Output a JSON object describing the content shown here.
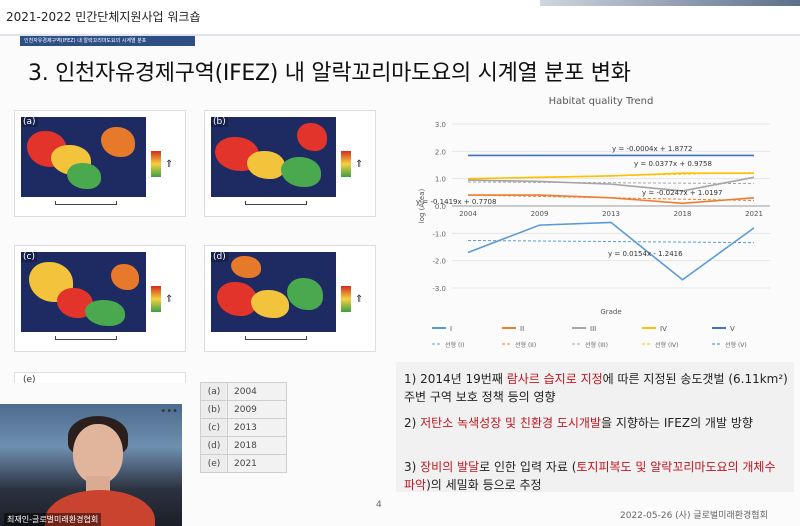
{
  "header": {
    "workshop": "2021-2022 민간단체지원사업 워크숍",
    "section_tag": "인천자유경제구역(IFEZ) 내 알락꼬리마도요의 시계열 분포",
    "title": "3. 인천자유경제구역(IFEZ) 내 알락꼬리마도요의 시계열 분포 변화"
  },
  "maps": [
    {
      "label": "(a)"
    },
    {
      "label": "(b)"
    },
    {
      "label": "(c)"
    },
    {
      "label": "(d)"
    },
    {
      "label": "(e)"
    }
  ],
  "year_table": [
    {
      "key": "(a)",
      "year": "2004"
    },
    {
      "key": "(b)",
      "year": "2009"
    },
    {
      "key": "(c)",
      "year": "2013"
    },
    {
      "key": "(d)",
      "year": "2018"
    },
    {
      "key": "(e)",
      "year": "2021"
    }
  ],
  "chart_data": {
    "type": "line",
    "title": "Habitat quality Trend",
    "xlabel": "Grade",
    "ylabel": "log (Area)",
    "categories": [
      "2004",
      "2009",
      "2013",
      "2018",
      "2021"
    ],
    "ylim": [
      -3.0,
      3.0
    ],
    "yticks": [
      "3.0",
      "2.0",
      "1.0",
      "0.0",
      "-1.0",
      "-2.0",
      "-3.0"
    ],
    "series": [
      {
        "name": "I",
        "color": "#5b9bd5",
        "values": [
          -1.7,
          -0.7,
          -0.6,
          -2.7,
          -0.8
        ]
      },
      {
        "name": "II",
        "color": "#ed7d31",
        "values": [
          0.4,
          0.4,
          0.3,
          0.1,
          0.3
        ]
      },
      {
        "name": "III",
        "color": "#a5a5a5",
        "values": [
          0.95,
          0.9,
          0.8,
          0.55,
          1.05
        ]
      },
      {
        "name": "IV",
        "color": "#ffc000",
        "values": [
          1.0,
          1.05,
          1.1,
          1.2,
          1.2
        ]
      },
      {
        "name": "V",
        "color": "#4472c4",
        "values": [
          1.85,
          1.85,
          1.85,
          1.85,
          1.85
        ]
      }
    ],
    "trendlines": [
      {
        "name": "선형 (I)",
        "color": "#5b9bd5"
      },
      {
        "name": "선형 (II)",
        "color": "#ed7d31"
      },
      {
        "name": "선형 (III)",
        "color": "#a5a5a5"
      },
      {
        "name": "선형 (IV)",
        "color": "#ffc000"
      },
      {
        "name": "선형 (V)",
        "color": "#4472c4"
      }
    ],
    "annotations": [
      "y = -0.0004x + 1.8772",
      "y = 0.0377x + 0.9758",
      "y = -0.1419x + 0.7708",
      "y = -0.0247x + 1.0197",
      "y = 0.0154x - 1.2416"
    ]
  },
  "notes": {
    "b1_pre": "1) 2014년 19번째 ",
    "b1_kw": "람사르 습지로 지정",
    "b1_post": "에 따른 지정된 송도갯벌 (6.11km²) 주변 구역 보호 정책 등의 영향",
    "b2_pre": "2) ",
    "b2_kw": "저탄소 녹색성장 및 친환경 도시개발",
    "b2_post": "을 지향하는 IFEZ의 개발 방향",
    "b3_pre": "3) ",
    "b3_kw": "장비의 발달",
    "b3_mid": "로 인한 입력 자료 (",
    "b3_kw2": "토지피복도 및 알락꼬리마도요의 개체수 파악",
    "b3_post": ")의 세밀화 등으로 추정"
  },
  "footer": {
    "page": "4",
    "date_org": "2022-05-26 (사) 글로벌미래환경협회"
  },
  "webcam": {
    "name": "최재인-글로벌미래환경협회"
  }
}
